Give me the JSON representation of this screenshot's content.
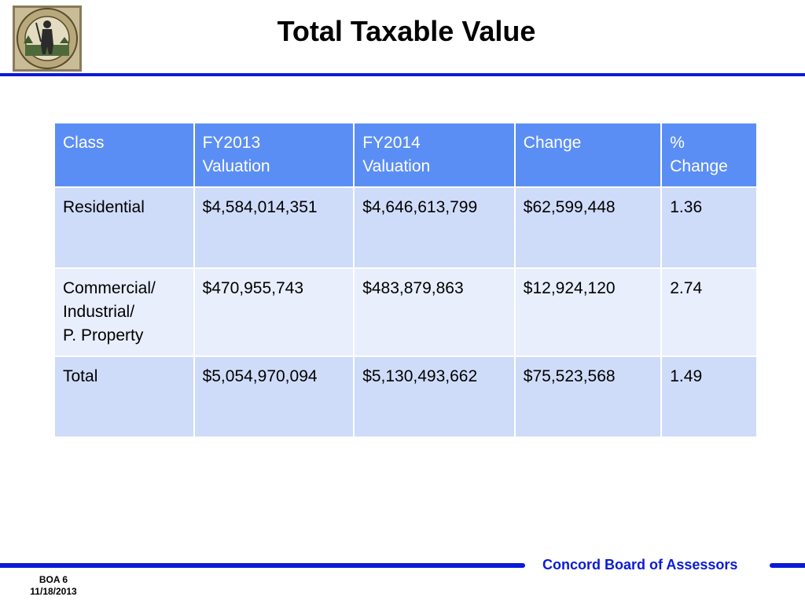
{
  "slide": {
    "title": "Total Taxable Value",
    "organization": "Concord Board of Assessors",
    "slide_code": "BOA 6",
    "date": "11/18/2013",
    "accent_color": "#0a1bd6",
    "header_color": "#5b8ef5"
  },
  "seal": {
    "icon": "town-seal-icon",
    "inscription": "CONCORD · MASSACHUSETTS · INCORPORATED 1635"
  },
  "table": {
    "headers": [
      [
        "Class"
      ],
      [
        "FY2013",
        "Valuation"
      ],
      [
        "FY2014",
        "Valuation"
      ],
      [
        "Change"
      ],
      [
        "%",
        "Change"
      ]
    ],
    "rows": [
      {
        "class": [
          "Residential"
        ],
        "fy2013": "$4,584,014,351",
        "fy2014": "$4,646,613,799",
        "change": "$62,599,448",
        "pct_change": "1.36"
      },
      {
        "class": [
          "Commercial/",
          "Industrial/",
          "P. Property"
        ],
        "fy2013": "$470,955,743",
        "fy2014": "$483,879,863",
        "change": "$12,924,120",
        "pct_change": "2.74"
      },
      {
        "class": [
          "Total"
        ],
        "fy2013": "$5,054,970,094",
        "fy2014": "$5,130,493,662",
        "change": "$75,523,568",
        "pct_change": "1.49"
      }
    ]
  }
}
